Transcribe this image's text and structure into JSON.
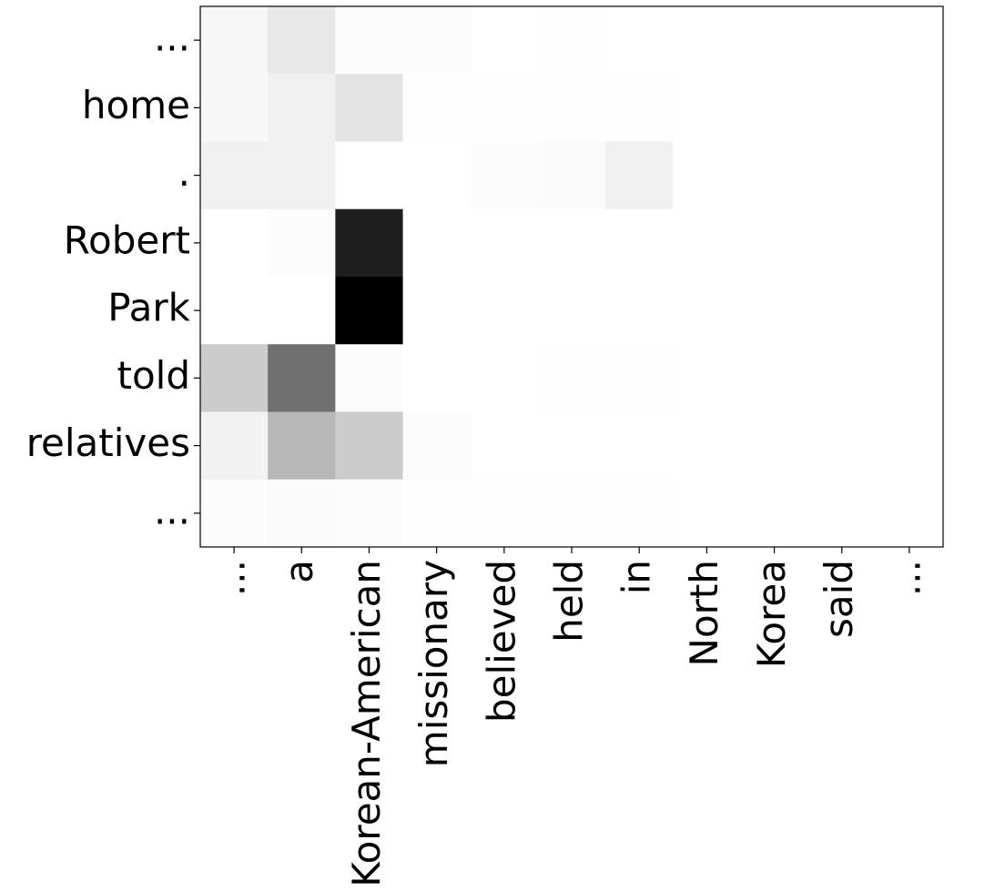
{
  "chart_data": {
    "type": "heatmap",
    "colormap": "Greys",
    "x": [
      "...",
      "a",
      "Korean-American",
      "missionary",
      "believed",
      "held",
      "in",
      "North",
      "Korea",
      "said",
      "..."
    ],
    "y": [
      "...",
      "home",
      ".",
      "Robert",
      "Park",
      "told",
      "relatives",
      "..."
    ],
    "values": [
      [
        0.03,
        0.09,
        0.01,
        0.01,
        0,
        0.005,
        0,
        0,
        0,
        0,
        0
      ],
      [
        0.03,
        0.06,
        0.11,
        0.005,
        0.005,
        0.005,
        0.005,
        0,
        0,
        0,
        0
      ],
      [
        0.06,
        0.06,
        0,
        0,
        0.01,
        0.02,
        0.06,
        0,
        0,
        0,
        0
      ],
      [
        0,
        0.01,
        0.88,
        0,
        0,
        0,
        0,
        0,
        0,
        0,
        0
      ],
      [
        0,
        0,
        1.0,
        0,
        0,
        0,
        0,
        0,
        0,
        0,
        0
      ],
      [
        0.2,
        0.56,
        0.01,
        0,
        0,
        0.005,
        0.005,
        0,
        0,
        0,
        0
      ],
      [
        0.05,
        0.28,
        0.2,
        0.01,
        0,
        0,
        0,
        0,
        0,
        0,
        0
      ],
      [
        0.01,
        0.02,
        0.01,
        0.005,
        0.005,
        0.005,
        0.005,
        0,
        0,
        0,
        0
      ]
    ]
  }
}
